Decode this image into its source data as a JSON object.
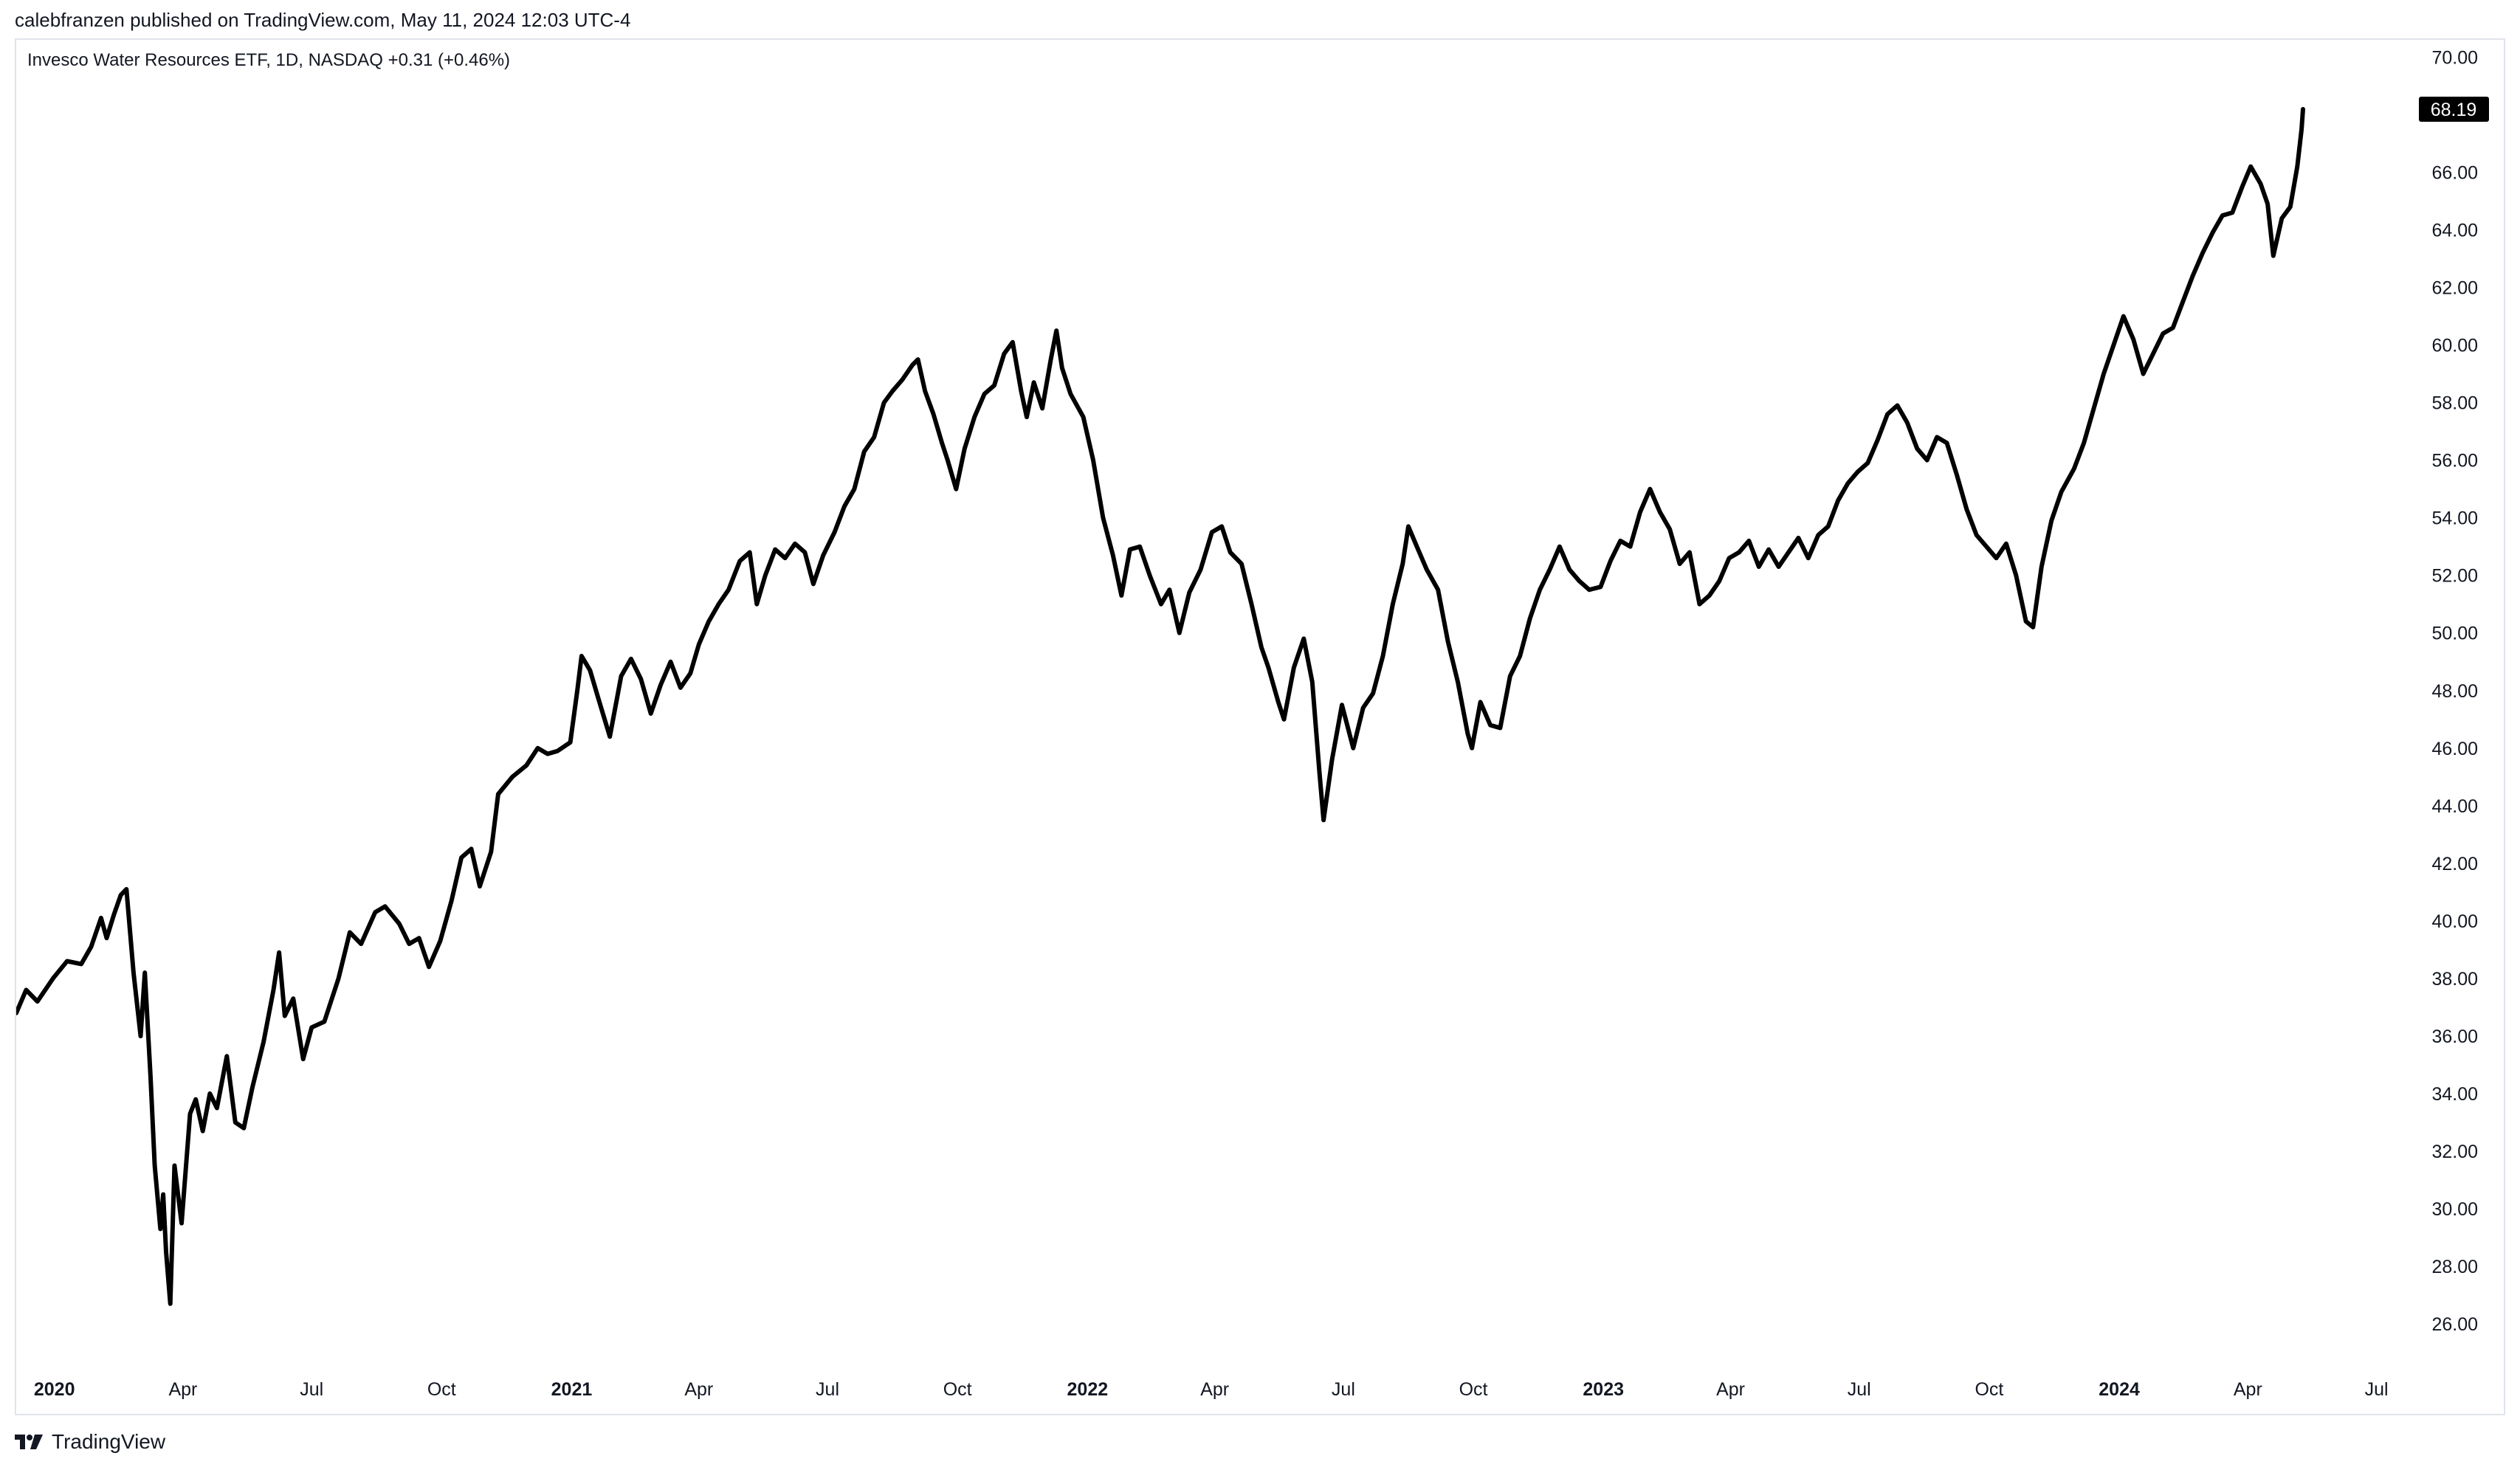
{
  "header": {
    "publisher_line": "calebfranzen published on TradingView.com, May 11, 2024 12:03 UTC-4",
    "legend": "Invesco Water Resources ETF, 1D, NASDAQ  +0.31 (+0.46%)"
  },
  "footer": {
    "brand": "TradingView"
  },
  "colors": {
    "line": "#000000",
    "price_badge_bg": "#000000",
    "price_badge_text": "#ffffff",
    "frame": "#e0e3eb"
  },
  "chart_data": {
    "type": "line",
    "symbol": "Invesco Water Resources ETF",
    "interval": "1D",
    "exchange": "NASDAQ",
    "change": "+0.31 (+0.46%)",
    "last_price": "68.19",
    "ylim": [
      24.85,
      70.6
    ],
    "y_ticks": [
      "70.00",
      "68.00",
      "66.00",
      "64.00",
      "62.00",
      "60.00",
      "58.00",
      "56.00",
      "54.00",
      "52.00",
      "50.00",
      "48.00",
      "46.00",
      "44.00",
      "42.00",
      "40.00",
      "38.00",
      "36.00",
      "34.00",
      "32.00",
      "30.00",
      "28.00",
      "26.00"
    ],
    "xlim": [
      "2019-12-05",
      "2024-07-31"
    ],
    "x_ticks": [
      {
        "date": "2020-01-01",
        "label": "2020",
        "bold": true
      },
      {
        "date": "2020-04-01",
        "label": "Apr"
      },
      {
        "date": "2020-07-01",
        "label": "Jul"
      },
      {
        "date": "2020-10-01",
        "label": "Oct"
      },
      {
        "date": "2021-01-01",
        "label": "2021",
        "bold": true
      },
      {
        "date": "2021-04-01",
        "label": "Apr"
      },
      {
        "date": "2021-07-01",
        "label": "Jul"
      },
      {
        "date": "2021-10-01",
        "label": "Oct"
      },
      {
        "date": "2022-01-01",
        "label": "2022",
        "bold": true
      },
      {
        "date": "2022-04-01",
        "label": "Apr"
      },
      {
        "date": "2022-07-01",
        "label": "Jul"
      },
      {
        "date": "2022-10-01",
        "label": "Oct"
      },
      {
        "date": "2023-01-01",
        "label": "2023",
        "bold": true
      },
      {
        "date": "2023-04-01",
        "label": "Apr"
      },
      {
        "date": "2023-07-01",
        "label": "Jul"
      },
      {
        "date": "2023-10-01",
        "label": "Oct"
      },
      {
        "date": "2024-01-01",
        "label": "2024",
        "bold": true
      },
      {
        "date": "2024-04-01",
        "label": "Apr"
      },
      {
        "date": "2024-07-01",
        "label": "Jul"
      }
    ],
    "series": [
      {
        "points": [
          [
            "2019-12-05",
            36.8
          ],
          [
            "2019-12-12",
            37.6
          ],
          [
            "2019-12-20",
            37.2
          ],
          [
            "2019-12-31",
            38.0
          ],
          [
            "2020-01-10",
            38.6
          ],
          [
            "2020-01-20",
            38.5
          ],
          [
            "2020-01-27",
            39.1
          ],
          [
            "2020-02-03",
            40.1
          ],
          [
            "2020-02-07",
            39.4
          ],
          [
            "2020-02-12",
            40.2
          ],
          [
            "2020-02-17",
            40.9
          ],
          [
            "2020-02-21",
            41.1
          ],
          [
            "2020-02-26",
            38.2
          ],
          [
            "2020-03-02",
            36.0
          ],
          [
            "2020-03-05",
            38.2
          ],
          [
            "2020-03-09",
            34.6
          ],
          [
            "2020-03-12",
            31.5
          ],
          [
            "2020-03-16",
            29.3
          ],
          [
            "2020-03-18",
            30.5
          ],
          [
            "2020-03-20",
            28.5
          ],
          [
            "2020-03-23",
            26.7
          ],
          [
            "2020-03-26",
            31.5
          ],
          [
            "2020-03-31",
            29.5
          ],
          [
            "2020-04-06",
            33.3
          ],
          [
            "2020-04-10",
            33.8
          ],
          [
            "2020-04-15",
            32.7
          ],
          [
            "2020-04-20",
            34.0
          ],
          [
            "2020-04-25",
            33.5
          ],
          [
            "2020-05-02",
            35.3
          ],
          [
            "2020-05-08",
            33.0
          ],
          [
            "2020-05-14",
            32.8
          ],
          [
            "2020-05-20",
            34.2
          ],
          [
            "2020-05-28",
            35.8
          ],
          [
            "2020-06-04",
            37.6
          ],
          [
            "2020-06-08",
            38.9
          ],
          [
            "2020-06-12",
            36.7
          ],
          [
            "2020-06-18",
            37.3
          ],
          [
            "2020-06-25",
            35.2
          ],
          [
            "2020-07-01",
            36.3
          ],
          [
            "2020-07-10",
            36.5
          ],
          [
            "2020-07-20",
            38.0
          ],
          [
            "2020-07-28",
            39.6
          ],
          [
            "2020-08-05",
            39.2
          ],
          [
            "2020-08-15",
            40.3
          ],
          [
            "2020-08-22",
            40.5
          ],
          [
            "2020-09-01",
            39.9
          ],
          [
            "2020-09-08",
            39.2
          ],
          [
            "2020-09-15",
            39.4
          ],
          [
            "2020-09-22",
            38.4
          ],
          [
            "2020-09-30",
            39.3
          ],
          [
            "2020-10-08",
            40.7
          ],
          [
            "2020-10-15",
            42.2
          ],
          [
            "2020-10-22",
            42.5
          ],
          [
            "2020-10-28",
            41.2
          ],
          [
            "2020-11-05",
            42.4
          ],
          [
            "2020-11-10",
            44.4
          ],
          [
            "2020-11-20",
            45.0
          ],
          [
            "2020-11-30",
            45.4
          ],
          [
            "2020-12-08",
            46.0
          ],
          [
            "2020-12-15",
            45.8
          ],
          [
            "2020-12-22",
            45.9
          ],
          [
            "2020-12-31",
            46.2
          ],
          [
            "2021-01-05",
            48.0
          ],
          [
            "2021-01-08",
            49.2
          ],
          [
            "2021-01-14",
            48.7
          ],
          [
            "2021-01-20",
            47.7
          ],
          [
            "2021-01-28",
            46.4
          ],
          [
            "2021-02-05",
            48.5
          ],
          [
            "2021-02-12",
            49.1
          ],
          [
            "2021-02-19",
            48.4
          ],
          [
            "2021-02-26",
            47.2
          ],
          [
            "2021-03-05",
            48.2
          ],
          [
            "2021-03-12",
            49.0
          ],
          [
            "2021-03-19",
            48.1
          ],
          [
            "2021-03-26",
            48.6
          ],
          [
            "2021-04-01",
            49.6
          ],
          [
            "2021-04-08",
            50.4
          ],
          [
            "2021-04-15",
            51.0
          ],
          [
            "2021-04-22",
            51.5
          ],
          [
            "2021-04-30",
            52.5
          ],
          [
            "2021-05-07",
            52.8
          ],
          [
            "2021-05-12",
            51.0
          ],
          [
            "2021-05-18",
            52.0
          ],
          [
            "2021-05-25",
            52.9
          ],
          [
            "2021-06-01",
            52.6
          ],
          [
            "2021-06-08",
            53.1
          ],
          [
            "2021-06-15",
            52.8
          ],
          [
            "2021-06-21",
            51.7
          ],
          [
            "2021-06-28",
            52.7
          ],
          [
            "2021-07-06",
            53.5
          ],
          [
            "2021-07-13",
            54.4
          ],
          [
            "2021-07-20",
            55.0
          ],
          [
            "2021-07-27",
            56.3
          ],
          [
            "2021-08-03",
            56.8
          ],
          [
            "2021-08-10",
            58.0
          ],
          [
            "2021-08-16",
            58.4
          ],
          [
            "2021-08-23",
            58.8
          ],
          [
            "2021-08-30",
            59.3
          ],
          [
            "2021-09-03",
            59.5
          ],
          [
            "2021-09-08",
            58.4
          ],
          [
            "2021-09-14",
            57.6
          ],
          [
            "2021-09-20",
            56.6
          ],
          [
            "2021-09-24",
            56.0
          ],
          [
            "2021-09-30",
            55.0
          ],
          [
            "2021-10-06",
            56.4
          ],
          [
            "2021-10-13",
            57.5
          ],
          [
            "2021-10-20",
            58.3
          ],
          [
            "2021-10-27",
            58.6
          ],
          [
            "2021-11-03",
            59.7
          ],
          [
            "2021-11-09",
            60.1
          ],
          [
            "2021-11-15",
            58.4
          ],
          [
            "2021-11-19",
            57.5
          ],
          [
            "2021-11-24",
            58.7
          ],
          [
            "2021-11-30",
            57.8
          ],
          [
            "2021-12-06",
            59.5
          ],
          [
            "2021-12-10",
            60.5
          ],
          [
            "2021-12-14",
            59.2
          ],
          [
            "2021-12-20",
            58.3
          ],
          [
            "2021-12-29",
            57.5
          ],
          [
            "2022-01-05",
            56.0
          ],
          [
            "2022-01-12",
            54.0
          ],
          [
            "2022-01-19",
            52.7
          ],
          [
            "2022-01-25",
            51.3
          ],
          [
            "2022-01-31",
            52.9
          ],
          [
            "2022-02-07",
            53.0
          ],
          [
            "2022-02-14",
            52.0
          ],
          [
            "2022-02-22",
            51.0
          ],
          [
            "2022-02-28",
            51.5
          ],
          [
            "2022-03-07",
            50.0
          ],
          [
            "2022-03-14",
            51.4
          ],
          [
            "2022-03-22",
            52.2
          ],
          [
            "2022-03-30",
            53.5
          ],
          [
            "2022-04-06",
            53.7
          ],
          [
            "2022-04-12",
            52.8
          ],
          [
            "2022-04-20",
            52.4
          ],
          [
            "2022-04-27",
            51.0
          ],
          [
            "2022-05-04",
            49.5
          ],
          [
            "2022-05-09",
            48.8
          ],
          [
            "2022-05-16",
            47.6
          ],
          [
            "2022-05-20",
            47.0
          ],
          [
            "2022-05-27",
            48.8
          ],
          [
            "2022-06-03",
            49.8
          ],
          [
            "2022-06-09",
            48.3
          ],
          [
            "2022-06-14",
            45.2
          ],
          [
            "2022-06-17",
            43.5
          ],
          [
            "2022-06-23",
            45.6
          ],
          [
            "2022-06-30",
            47.5
          ],
          [
            "2022-07-08",
            46.0
          ],
          [
            "2022-07-15",
            47.4
          ],
          [
            "2022-07-22",
            47.9
          ],
          [
            "2022-07-29",
            49.2
          ],
          [
            "2022-08-05",
            51.0
          ],
          [
            "2022-08-12",
            52.4
          ],
          [
            "2022-08-16",
            53.7
          ],
          [
            "2022-08-22",
            53.0
          ],
          [
            "2022-08-29",
            52.2
          ],
          [
            "2022-09-06",
            51.5
          ],
          [
            "2022-09-13",
            49.7
          ],
          [
            "2022-09-20",
            48.3
          ],
          [
            "2022-09-27",
            46.5
          ],
          [
            "2022-09-30",
            46.0
          ],
          [
            "2022-10-06",
            47.6
          ],
          [
            "2022-10-13",
            46.8
          ],
          [
            "2022-10-20",
            46.7
          ],
          [
            "2022-10-27",
            48.5
          ],
          [
            "2022-11-03",
            49.2
          ],
          [
            "2022-11-10",
            50.5
          ],
          [
            "2022-11-17",
            51.5
          ],
          [
            "2022-11-24",
            52.2
          ],
          [
            "2022-12-01",
            53.0
          ],
          [
            "2022-12-08",
            52.2
          ],
          [
            "2022-12-15",
            51.8
          ],
          [
            "2022-12-22",
            51.5
          ],
          [
            "2022-12-30",
            51.6
          ],
          [
            "2023-01-06",
            52.5
          ],
          [
            "2023-01-13",
            53.2
          ],
          [
            "2023-01-20",
            53.0
          ],
          [
            "2023-01-27",
            54.2
          ],
          [
            "2023-02-03",
            55.0
          ],
          [
            "2023-02-10",
            54.2
          ],
          [
            "2023-02-17",
            53.6
          ],
          [
            "2023-02-24",
            52.4
          ],
          [
            "2023-03-03",
            52.8
          ],
          [
            "2023-03-10",
            51.0
          ],
          [
            "2023-03-17",
            51.3
          ],
          [
            "2023-03-24",
            51.8
          ],
          [
            "2023-03-31",
            52.6
          ],
          [
            "2023-04-07",
            52.8
          ],
          [
            "2023-04-14",
            53.2
          ],
          [
            "2023-04-21",
            52.3
          ],
          [
            "2023-04-28",
            52.9
          ],
          [
            "2023-05-05",
            52.3
          ],
          [
            "2023-05-12",
            52.8
          ],
          [
            "2023-05-19",
            53.3
          ],
          [
            "2023-05-26",
            52.6
          ],
          [
            "2023-06-02",
            53.4
          ],
          [
            "2023-06-09",
            53.7
          ],
          [
            "2023-06-16",
            54.6
          ],
          [
            "2023-06-23",
            55.2
          ],
          [
            "2023-06-30",
            55.6
          ],
          [
            "2023-07-07",
            55.9
          ],
          [
            "2023-07-14",
            56.7
          ],
          [
            "2023-07-21",
            57.6
          ],
          [
            "2023-07-28",
            57.9
          ],
          [
            "2023-08-04",
            57.3
          ],
          [
            "2023-08-11",
            56.4
          ],
          [
            "2023-08-18",
            56.0
          ],
          [
            "2023-08-25",
            56.8
          ],
          [
            "2023-09-01",
            56.6
          ],
          [
            "2023-09-08",
            55.5
          ],
          [
            "2023-09-15",
            54.3
          ],
          [
            "2023-09-22",
            53.4
          ],
          [
            "2023-09-29",
            53.0
          ],
          [
            "2023-10-06",
            52.6
          ],
          [
            "2023-10-13",
            53.1
          ],
          [
            "2023-10-20",
            52.0
          ],
          [
            "2023-10-27",
            50.4
          ],
          [
            "2023-11-01",
            50.2
          ],
          [
            "2023-11-07",
            52.3
          ],
          [
            "2023-11-14",
            53.9
          ],
          [
            "2023-11-21",
            54.9
          ],
          [
            "2023-11-30",
            55.7
          ],
          [
            "2023-12-07",
            56.6
          ],
          [
            "2023-12-14",
            57.8
          ],
          [
            "2023-12-21",
            59.0
          ],
          [
            "2023-12-28",
            60.0
          ],
          [
            "2024-01-04",
            61.0
          ],
          [
            "2024-01-11",
            60.2
          ],
          [
            "2024-01-18",
            59.0
          ],
          [
            "2024-01-25",
            59.7
          ],
          [
            "2024-02-01",
            60.4
          ],
          [
            "2024-02-08",
            60.6
          ],
          [
            "2024-02-15",
            61.5
          ],
          [
            "2024-02-22",
            62.4
          ],
          [
            "2024-02-29",
            63.2
          ],
          [
            "2024-03-07",
            63.9
          ],
          [
            "2024-03-14",
            64.5
          ],
          [
            "2024-03-21",
            64.6
          ],
          [
            "2024-03-28",
            65.5
          ],
          [
            "2024-04-03",
            66.2
          ],
          [
            "2024-04-10",
            65.6
          ],
          [
            "2024-04-15",
            64.9
          ],
          [
            "2024-04-19",
            63.1
          ],
          [
            "2024-04-25",
            64.4
          ],
          [
            "2024-05-01",
            64.8
          ],
          [
            "2024-05-06",
            66.2
          ],
          [
            "2024-05-09",
            67.5
          ],
          [
            "2024-05-10",
            68.19
          ]
        ]
      }
    ]
  }
}
